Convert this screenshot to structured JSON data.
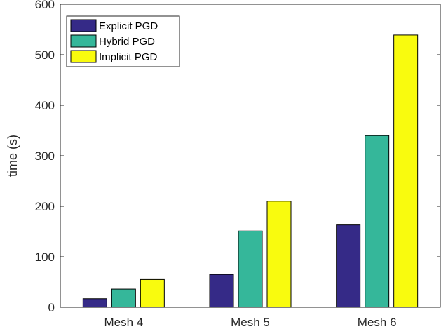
{
  "chart_data": {
    "type": "bar",
    "title": "",
    "xlabel": "",
    "ylabel": "time (s)",
    "categories": [
      "Mesh 4",
      "Mesh 5",
      "Mesh 6"
    ],
    "ylim": [
      0,
      600
    ],
    "yticks": [
      0,
      100,
      200,
      300,
      400,
      500,
      600
    ],
    "grid": false,
    "legend_position": "top-left",
    "series": [
      {
        "name": "Explicit PGD",
        "color": "#352a87",
        "values": [
          17,
          65,
          163
        ]
      },
      {
        "name": "Hybrid PGD",
        "color": "#35b79a",
        "values": [
          36,
          151,
          340
        ]
      },
      {
        "name": "Implicit PGD",
        "color": "#f9fb0e",
        "values": [
          55,
          210,
          539
        ]
      }
    ]
  }
}
